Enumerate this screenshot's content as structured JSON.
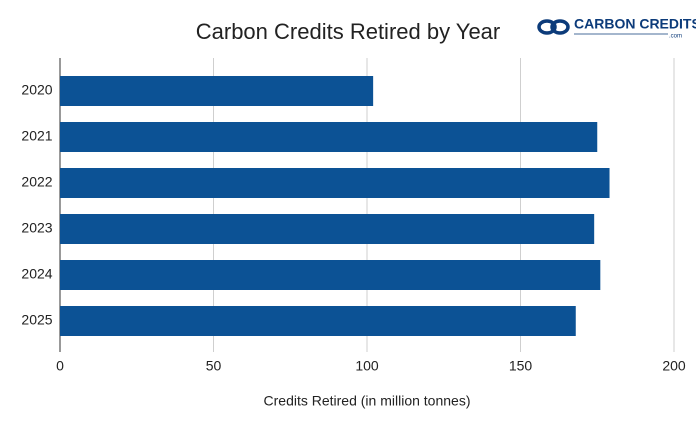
{
  "chart_data": {
    "type": "bar",
    "orientation": "horizontal",
    "title": "Carbon Credits Retired by Year",
    "x_label": "Credits Retired (in million tonnes)",
    "categories": [
      "2020",
      "2021",
      "2022",
      "2023",
      "2024",
      "2025"
    ],
    "values": [
      102,
      175,
      179,
      174,
      176,
      168
    ],
    "color": "#0c5295",
    "xlim": [
      0,
      200
    ],
    "xticks": [
      0,
      50,
      100,
      150,
      200
    ],
    "grid": true
  },
  "logo": {
    "text": "CARBON CREDITS",
    "suffix": ".com"
  }
}
